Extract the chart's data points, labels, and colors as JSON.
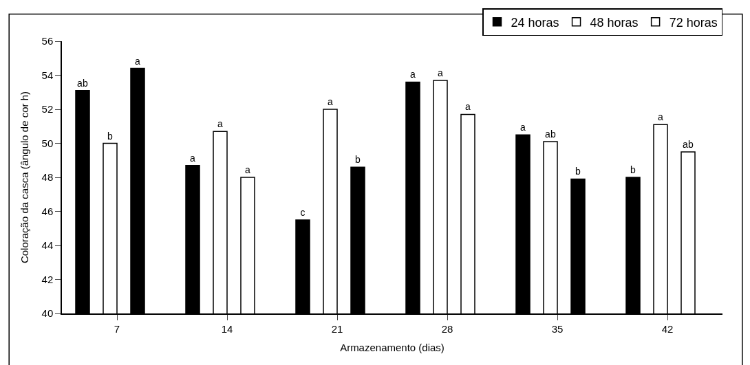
{
  "chart_data": {
    "type": "bar",
    "xlabel": "Armazenamento (dias)",
    "ylabel": "Coloração da casca (ângulo de cor h)",
    "categories": [
      "7",
      "14",
      "21",
      "28",
      "35",
      "42"
    ],
    "series": [
      {
        "name": "24 horas",
        "color": "#000000",
        "values": [
          53.1,
          48.7,
          45.5,
          53.6,
          50.5,
          48.0
        ],
        "value_labels": [
          "ab",
          "a",
          "c",
          "a",
          "a",
          "b"
        ]
      },
      {
        "name": "48 horas",
        "color": "#ffffff",
        "values": [
          50.0,
          50.7,
          52.0,
          53.7,
          50.1,
          51.1
        ],
        "value_labels": [
          "b",
          "a",
          "a",
          "a",
          "ab",
          "a"
        ]
      },
      {
        "name": "72 horas",
        "color": "#ffffff",
        "colors": [
          "#000000",
          "#ffffff",
          "#000000",
          "#ffffff",
          "#000000",
          "#ffffff"
        ],
        "values": [
          54.4,
          48.0,
          48.6,
          51.7,
          47.9,
          49.5
        ],
        "value_labels": [
          "a",
          "a",
          "b",
          "a",
          "b",
          "ab"
        ]
      }
    ],
    "ylim": [
      40,
      56
    ],
    "yticks": [
      40,
      42,
      44,
      46,
      48,
      50,
      52,
      54,
      56
    ],
    "legend": "top right"
  }
}
